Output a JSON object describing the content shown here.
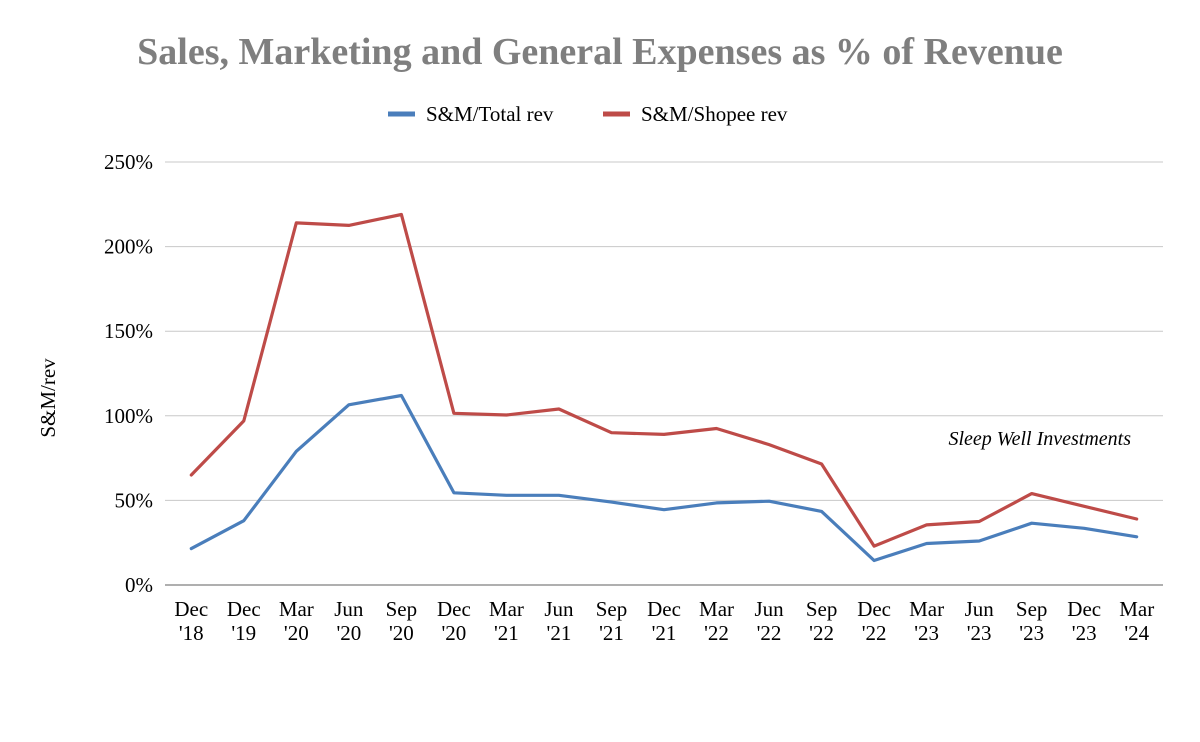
{
  "chart_data": {
    "type": "line",
    "title": "Sales, Marketing and General Expenses as % of Revenue",
    "xlabel": "",
    "ylabel": "S&M/rev",
    "ylim": [
      0,
      250
    ],
    "yticks": [
      "0%",
      "50%",
      "100%",
      "150%",
      "200%",
      "250%"
    ],
    "grid": true,
    "legend_position": "top",
    "categories": [
      [
        "Dec",
        "'18"
      ],
      [
        "Dec",
        "'19"
      ],
      [
        "Mar",
        "'20"
      ],
      [
        "Jun",
        "'20"
      ],
      [
        "Sep",
        "'20"
      ],
      [
        "Dec",
        "'20"
      ],
      [
        "Mar",
        "'21"
      ],
      [
        "Jun",
        "'21"
      ],
      [
        "Sep",
        "'21"
      ],
      [
        "Dec",
        "'21"
      ],
      [
        "Mar",
        "'22"
      ],
      [
        "Jun",
        "'22"
      ],
      [
        "Sep",
        "'22"
      ],
      [
        "Dec",
        "'22"
      ],
      [
        "Mar",
        "'23"
      ],
      [
        "Jun",
        "'23"
      ],
      [
        "Sep",
        "'23"
      ],
      [
        "Dec",
        "'23"
      ],
      [
        "Mar",
        "'24"
      ]
    ],
    "series": [
      {
        "name": "S&M/Total rev",
        "color": "#4a7ebb",
        "values": [
          21.5,
          38,
          79,
          106.5,
          112,
          54.5,
          53,
          53,
          49,
          44.5,
          48.5,
          49.5,
          43.5,
          14.5,
          24.5,
          26,
          36.5,
          33.5,
          28.5
        ]
      },
      {
        "name": "S&M/Shopee rev",
        "color": "#be4b48",
        "values": [
          65,
          97,
          214,
          212.5,
          219,
          101.5,
          100.5,
          104,
          90,
          89,
          92.5,
          83,
          71.5,
          23,
          35.5,
          37.5,
          54,
          46.5,
          39
        ]
      }
    ],
    "annotation": "Sleep Well Investments"
  }
}
